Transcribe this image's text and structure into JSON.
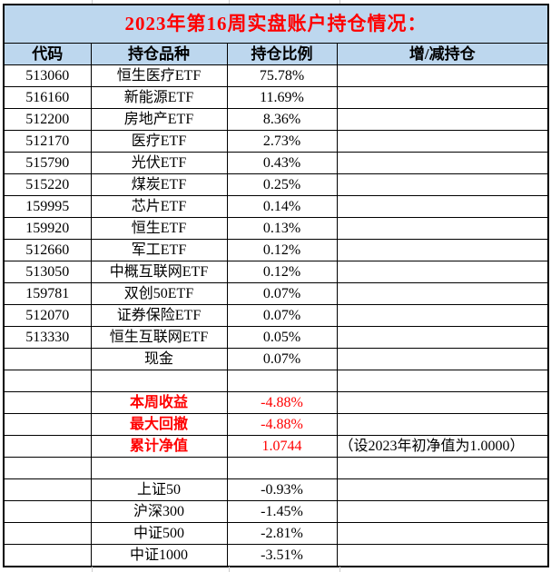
{
  "title": "2023年第16周实盘账户持仓情况：",
  "table": {
    "headers": [
      "代码",
      "持仓品种",
      "持仓比例",
      "增/减持仓"
    ],
    "holdings": [
      {
        "code": "513060",
        "name": "恒生医疗ETF",
        "ratio": "75.78%",
        "change": ""
      },
      {
        "code": "516160",
        "name": "新能源ETF",
        "ratio": "11.69%",
        "change": ""
      },
      {
        "code": "512200",
        "name": "房地产ETF",
        "ratio": "8.36%",
        "change": ""
      },
      {
        "code": "512170",
        "name": "医疗ETF",
        "ratio": "2.73%",
        "change": ""
      },
      {
        "code": "515790",
        "name": "光伏ETF",
        "ratio": "0.43%",
        "change": ""
      },
      {
        "code": "515220",
        "name": "煤炭ETF",
        "ratio": "0.25%",
        "change": ""
      },
      {
        "code": "159995",
        "name": "芯片ETF",
        "ratio": "0.14%",
        "change": ""
      },
      {
        "code": "159920",
        "name": "恒生ETF",
        "ratio": "0.13%",
        "change": ""
      },
      {
        "code": "512660",
        "name": "军工ETF",
        "ratio": "0.12%",
        "change": ""
      },
      {
        "code": "513050",
        "name": "中概互联网ETF",
        "ratio": "0.12%",
        "change": ""
      },
      {
        "code": "159781",
        "name": "双创50ETF",
        "ratio": "0.07%",
        "change": ""
      },
      {
        "code": "512070",
        "name": "证券保险ETF",
        "ratio": "0.07%",
        "change": ""
      },
      {
        "code": "513330",
        "name": "恒生互联网ETF",
        "ratio": "0.05%",
        "change": ""
      },
      {
        "code": "",
        "name": "现金",
        "ratio": "0.07%",
        "change": ""
      }
    ],
    "summary": [
      {
        "name": "本周收益",
        "value": "-4.88%",
        "note": ""
      },
      {
        "name": "最大回撤",
        "value": "-4.88%",
        "note": ""
      },
      {
        "name": "累计净值",
        "value": "1.0744",
        "note": "（设2023年初净值为1.0000）"
      }
    ],
    "benchmarks": [
      {
        "name": "上证50",
        "value": "-0.93%"
      },
      {
        "name": "沪深300",
        "value": "-1.45%"
      },
      {
        "name": "中证500",
        "value": "-2.81%"
      },
      {
        "name": "中证1000",
        "value": "-3.51%"
      }
    ]
  },
  "colors": {
    "header_bg": "#BDD7EE",
    "accent_red": "#FF0000",
    "border": "#000000",
    "grid_stub": "#CCCCCC",
    "background": "#FFFFFF"
  }
}
